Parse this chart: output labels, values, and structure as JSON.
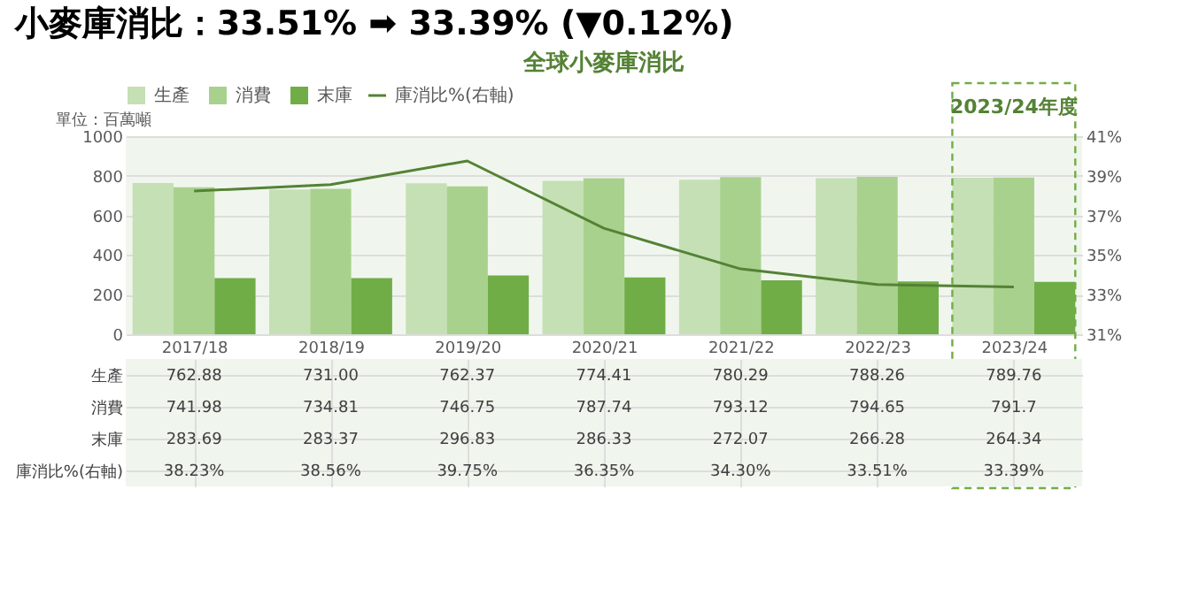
{
  "chart_data": {
    "type": "bar",
    "title": "小麥庫消比：33.51% ➡ 33.39% (▼0.12%)",
    "subtitle": "全球小麥庫消比",
    "ylabel": "單位：百萬噸",
    "categories": [
      "2017/18",
      "2018/19",
      "2019/20",
      "2020/21",
      "2021/22",
      "2022/23",
      "2023/24"
    ],
    "series": [
      {
        "name": "生產",
        "color": "#c5e0b4",
        "values": [
          762.88,
          731.0,
          762.37,
          774.41,
          780.29,
          788.26,
          789.76
        ],
        "value_labels": [
          "762.88",
          "731.00",
          "762.37",
          "774.41",
          "780.29",
          "788.26",
          "789.76"
        ]
      },
      {
        "name": "消費",
        "color": "#a9d18e",
        "values": [
          741.98,
          734.81,
          746.75,
          787.74,
          793.12,
          794.65,
          791.7
        ],
        "value_labels": [
          "741.98",
          "734.81",
          "746.75",
          "787.74",
          "793.12",
          "794.65",
          "791.7"
        ]
      },
      {
        "name": "末庫",
        "color": "#70ad47",
        "values": [
          283.69,
          283.37,
          296.83,
          286.33,
          272.07,
          266.28,
          264.34
        ],
        "value_labels": [
          "283.69",
          "283.37",
          "296.83",
          "286.33",
          "272.07",
          "266.28",
          "264.34"
        ]
      },
      {
        "name": "庫消比%(右軸)",
        "type": "line",
        "axis": "y2",
        "color": "#548235",
        "values": [
          38.23,
          38.56,
          39.75,
          36.35,
          34.3,
          33.51,
          33.39
        ],
        "value_labels": [
          "38.23%",
          "38.56%",
          "39.75%",
          "36.35%",
          "34.30%",
          "33.51%",
          "33.39%"
        ]
      }
    ],
    "ylim": [
      0,
      1000
    ],
    "yticks": [
      0,
      200,
      400,
      600,
      800,
      1000
    ],
    "y2lim": [
      31,
      41
    ],
    "y2ticks": [
      {
        "value": 31,
        "label": "31%"
      },
      {
        "value": 33,
        "label": "33%"
      },
      {
        "value": 35,
        "label": "35%"
      },
      {
        "value": 37,
        "label": "37%"
      },
      {
        "value": 39,
        "label": "39%"
      },
      {
        "value": 41,
        "label": "41%"
      }
    ],
    "annotations": [
      "2023/24年度"
    ],
    "grid": "y",
    "legend": "top"
  }
}
